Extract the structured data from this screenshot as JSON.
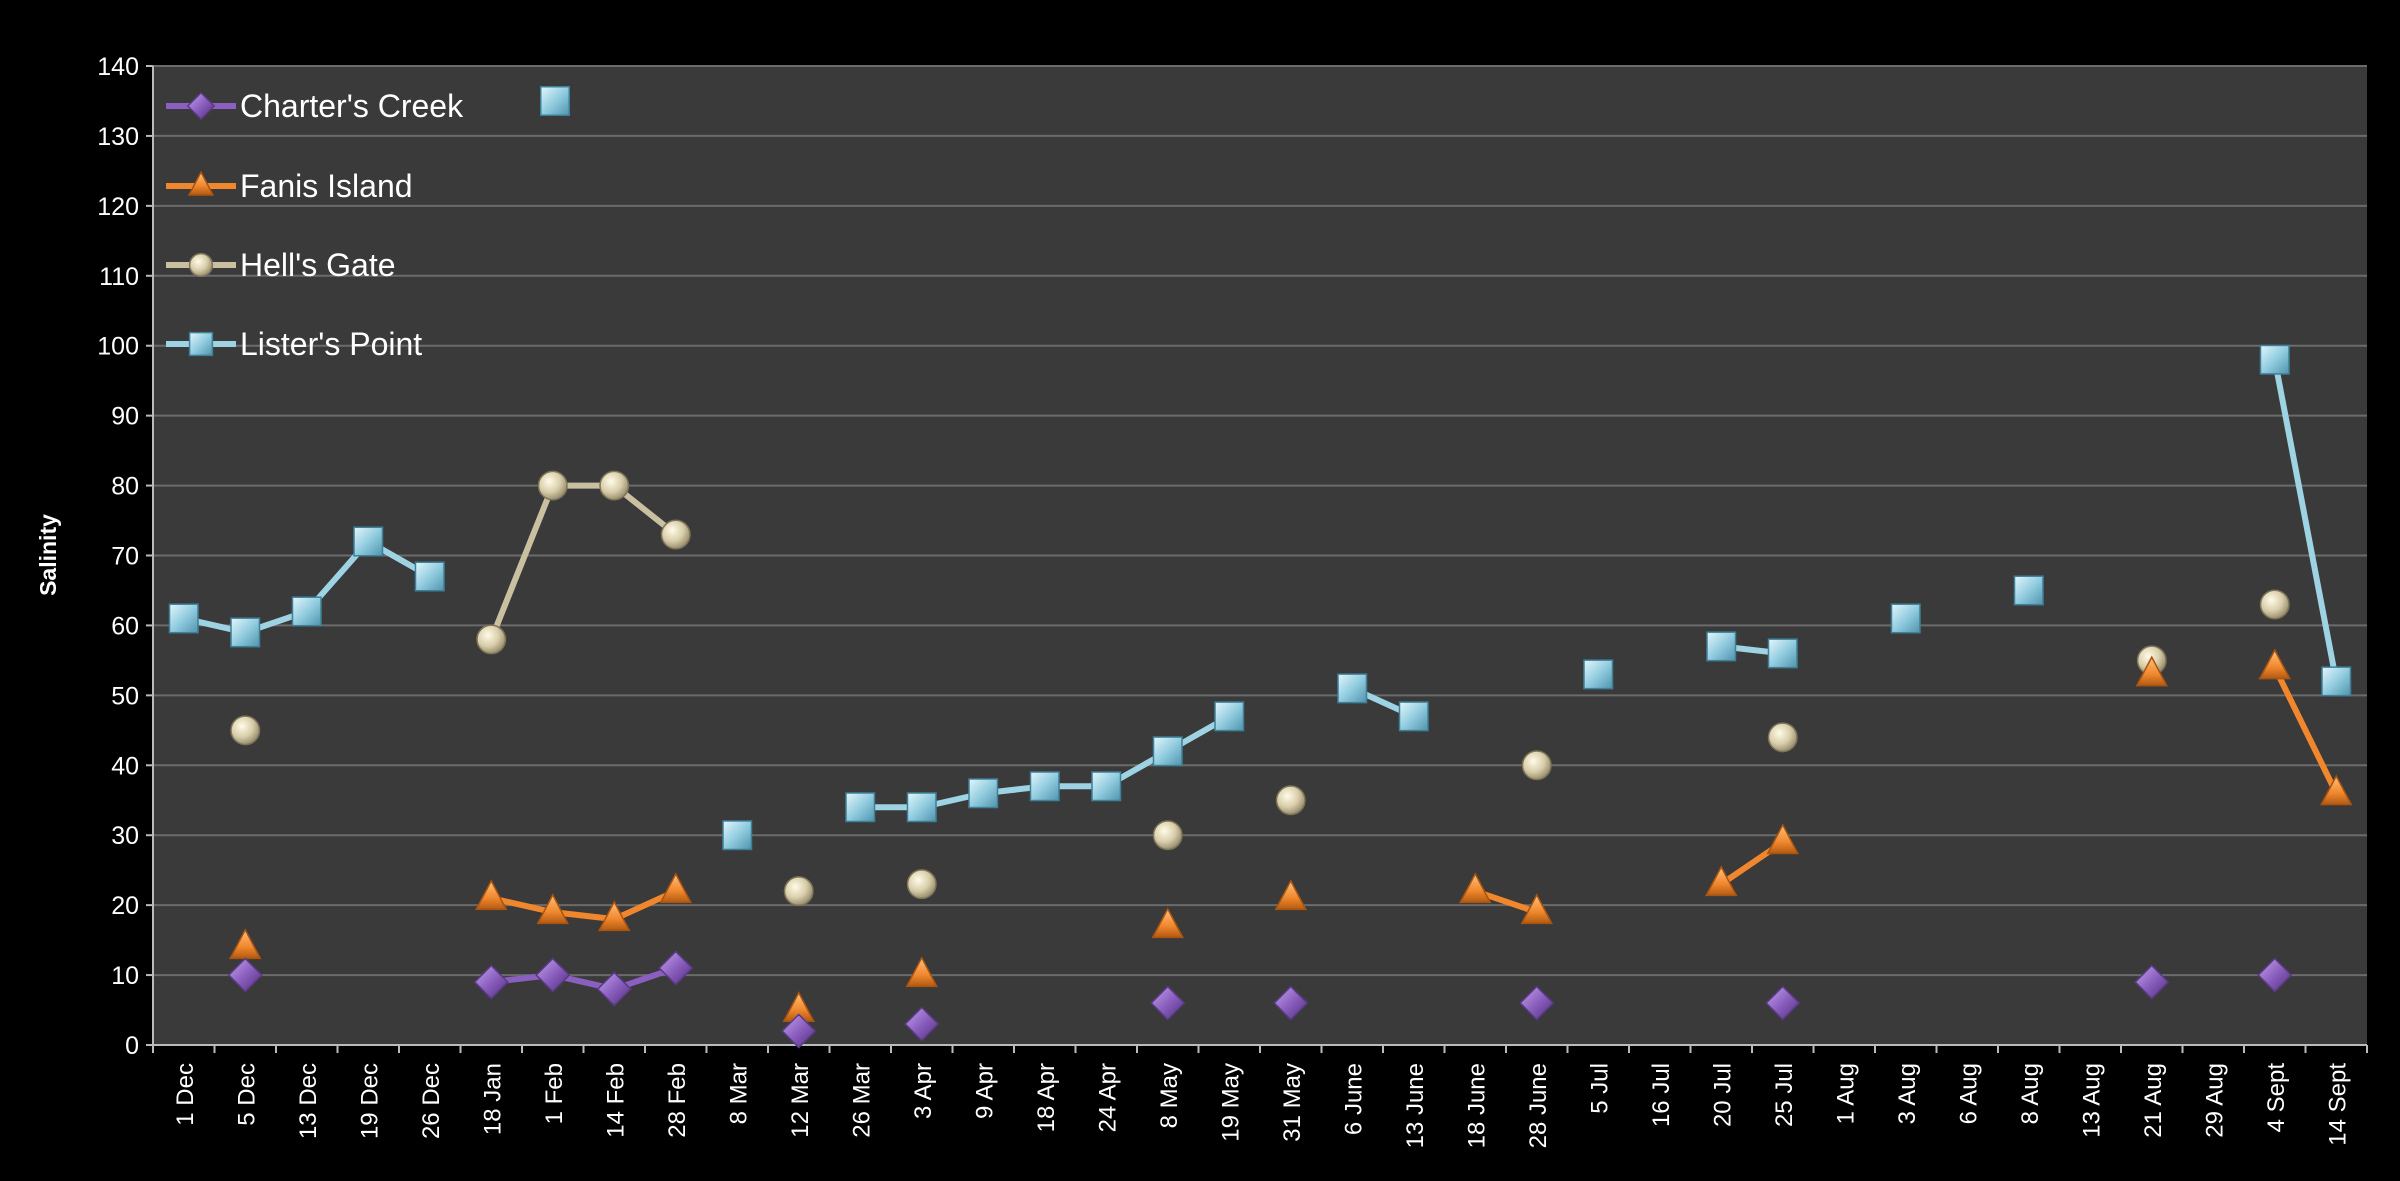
{
  "chart_data": {
    "type": "line",
    "title": "",
    "xlabel": "",
    "ylabel": "Salinity",
    "ylim": [
      0,
      140
    ],
    "yticks": [
      0,
      10,
      20,
      30,
      40,
      50,
      60,
      70,
      80,
      90,
      100,
      110,
      120,
      130,
      140
    ],
    "grid": true,
    "legend_position": "top-left",
    "categories": [
      "1 Dec",
      "5 Dec",
      "13 Dec",
      "19 Dec",
      "26 Dec",
      "18 Jan",
      "1 Feb",
      "14 Feb",
      "28 Feb",
      "8 Mar",
      "12 Mar",
      "26 Mar",
      "3 Apr",
      "9 Apr",
      "18 Apr",
      "24 Apr",
      "8 May",
      "19 May",
      "31 May",
      "6 June",
      "13 June",
      "18 June",
      "28 June",
      "5 Jul",
      "16 Jul",
      "20 Jul",
      "25 Jul",
      "1 Aug",
      "3 Aug",
      "6 Aug",
      "8 Aug",
      "13 Aug",
      "21 Aug",
      "29 Aug",
      "4 Sept",
      "14 Sept"
    ],
    "series": [
      {
        "name": "Charter's Creek",
        "color": "#8b5fbf",
        "marker": "diamond",
        "values": [
          null,
          10,
          null,
          null,
          null,
          9,
          10,
          8,
          11,
          null,
          2,
          null,
          3,
          null,
          null,
          null,
          6,
          null,
          6,
          null,
          null,
          null,
          6,
          null,
          null,
          null,
          6,
          null,
          null,
          null,
          null,
          null,
          9,
          null,
          10,
          null
        ]
      },
      {
        "name": "Fanis Island",
        "color": "#f0872d",
        "marker": "triangle",
        "values": [
          null,
          14,
          null,
          null,
          null,
          21,
          19,
          18,
          22,
          null,
          5,
          null,
          10,
          null,
          null,
          null,
          17,
          null,
          21,
          null,
          null,
          22,
          19,
          null,
          null,
          23,
          29,
          null,
          null,
          null,
          null,
          null,
          53,
          null,
          54,
          36
        ]
      },
      {
        "name": "Hell's Gate",
        "color": "#c9c0a1",
        "marker": "circle",
        "values": [
          null,
          45,
          null,
          null,
          null,
          58,
          80,
          80,
          73,
          null,
          22,
          null,
          23,
          null,
          null,
          null,
          30,
          null,
          35,
          null,
          null,
          null,
          40,
          null,
          null,
          null,
          44,
          null,
          null,
          null,
          null,
          null,
          55,
          null,
          63,
          null
        ]
      },
      {
        "name": "Lister's Point",
        "color": "#9ed3e3",
        "marker": "square",
        "values": [
          61,
          59,
          62,
          72,
          67,
          null,
          null,
          null,
          null,
          30,
          null,
          34,
          34,
          36,
          37,
          37,
          42,
          47,
          null,
          51,
          47,
          null,
          null,
          53,
          null,
          57,
          56,
          null,
          61,
          null,
          65,
          null,
          null,
          null,
          98,
          52
        ]
      }
    ]
  }
}
